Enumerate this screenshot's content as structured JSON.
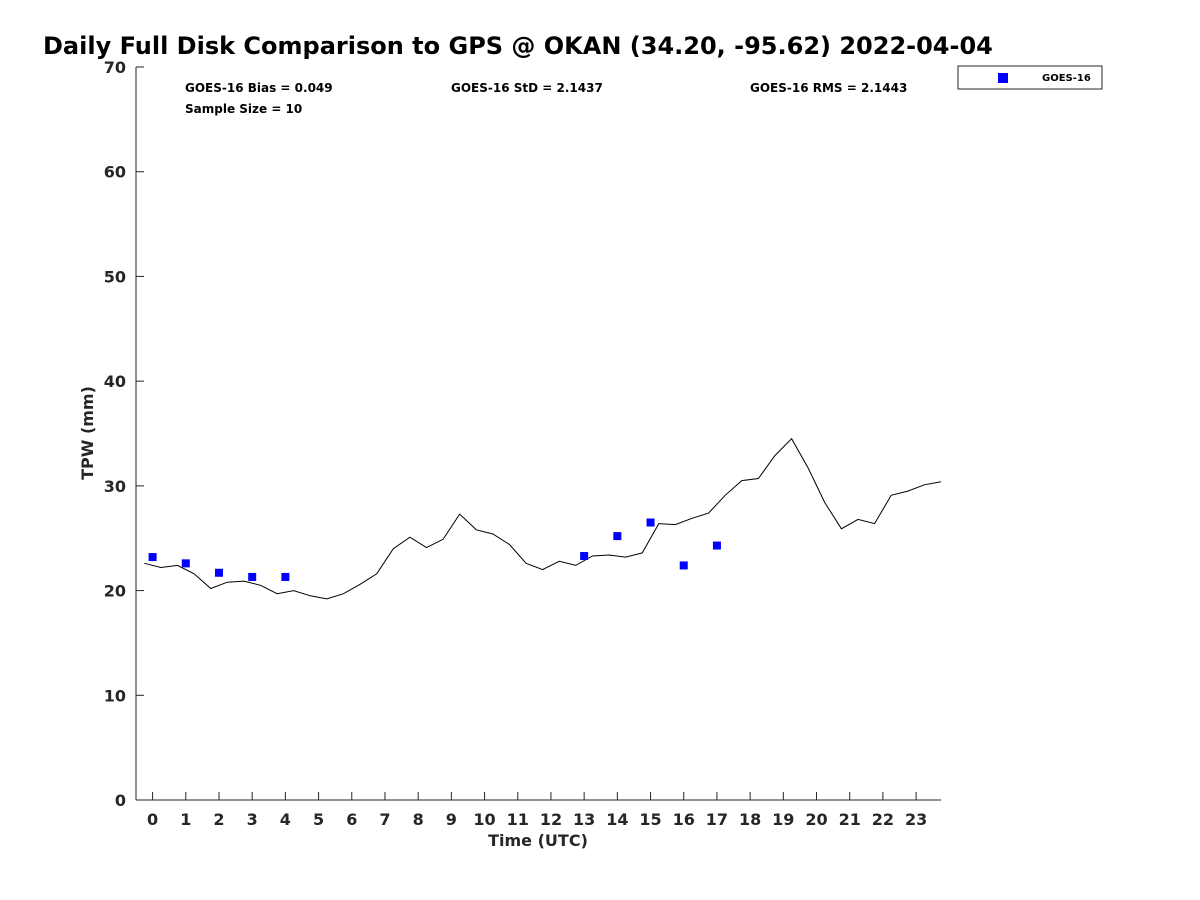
{
  "chart_data": {
    "type": "scatter",
    "title": "Daily Full Disk Comparison to GPS @ OKAN (34.20, -95.62) 2022-04-04",
    "xlabel": "Time (UTC)",
    "ylabel": "TPW (mm)",
    "xlim": [
      -0.5,
      23.75
    ],
    "ylim": [
      0,
      70
    ],
    "x_ticks": [
      "0",
      "1",
      "2",
      "3",
      "4",
      "5",
      "6",
      "7",
      "8",
      "9",
      "10",
      "11",
      "12",
      "13",
      "14",
      "15",
      "16",
      "17",
      "18",
      "19",
      "20",
      "21",
      "22",
      "23"
    ],
    "y_ticks": [
      "0",
      "10",
      "20",
      "30",
      "40",
      "50",
      "60",
      "70"
    ],
    "stats": {
      "bias": "GOES-16 Bias = 0.049",
      "sample_size": "Sample Size = 10",
      "std": "GOES-16 StD = 2.1437",
      "rms": "GOES-16 RMS = 2.1443"
    },
    "legend": {
      "position": "top-right, outside plot",
      "label": "GOES-16"
    },
    "series": [
      {
        "name": "GOES-16",
        "kind": "scatter",
        "marker": "square",
        "color": "#0000ff",
        "x": [
          0,
          1,
          2,
          3,
          4,
          13,
          14,
          15,
          16,
          17
        ],
        "y": [
          23.2,
          22.6,
          21.7,
          21.3,
          21.3,
          23.3,
          25.2,
          26.5,
          22.4,
          24.3
        ]
      },
      {
        "kind": "line",
        "color": "#000000",
        "x": [
          -0.25,
          0.25,
          0.75,
          1.25,
          1.75,
          2.25,
          2.75,
          3.25,
          3.75,
          4.25,
          4.75,
          5.25,
          5.75,
          6.25,
          6.75,
          7.25,
          7.75,
          8.25,
          8.75,
          9.25,
          9.75,
          10.25,
          10.75,
          11.25,
          11.75,
          12.25,
          12.75,
          13.25,
          13.75,
          14.25,
          14.75,
          15.25,
          15.75,
          16.25,
          16.75,
          17.25,
          17.75,
          18.25,
          18.75,
          19.25,
          19.75,
          20.25,
          20.75,
          21.25,
          21.75,
          22.25,
          22.75,
          23.25,
          23.75
        ],
        "y": [
          22.6,
          22.2,
          22.4,
          21.6,
          20.2,
          20.8,
          20.9,
          20.5,
          19.7,
          20.0,
          19.5,
          19.2,
          19.7,
          20.6,
          21.6,
          24.0,
          25.1,
          24.1,
          24.9,
          27.3,
          25.8,
          25.4,
          24.4,
          22.6,
          22.0,
          22.8,
          22.4,
          23.3,
          23.4,
          23.2,
          23.6,
          26.4,
          26.3,
          26.9,
          27.4,
          29.1,
          30.5,
          30.7,
          32.9,
          34.5,
          31.7,
          28.4,
          25.9,
          26.8,
          26.4,
          29.1,
          29.5,
          30.1,
          30.4
        ]
      }
    ]
  }
}
